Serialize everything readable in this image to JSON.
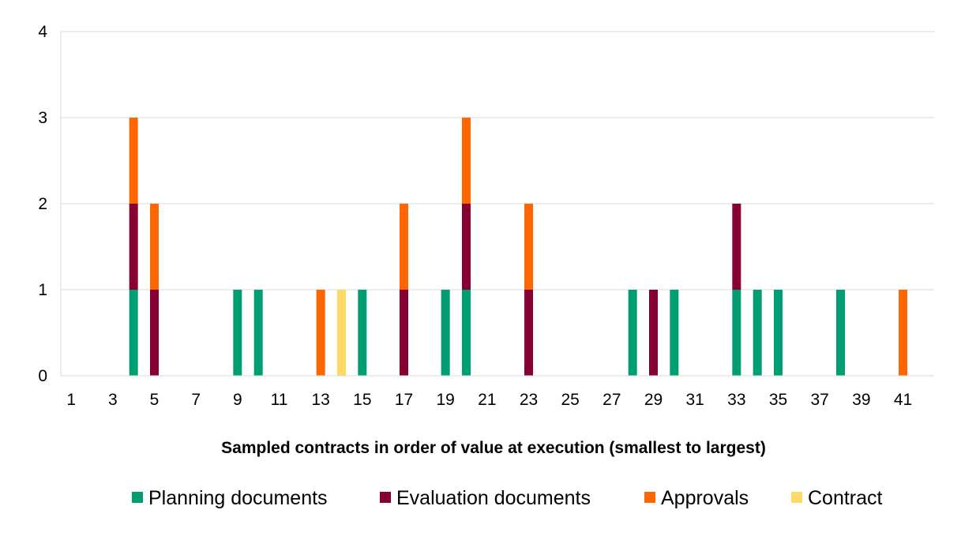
{
  "chart_data": {
    "type": "bar",
    "stacked": true,
    "title": "",
    "xlabel": "Sampled contracts in order of value at execution (smallest to largest)",
    "ylabel": "",
    "ylim": [
      0,
      4
    ],
    "yticks": [
      0,
      1,
      2,
      3,
      4
    ],
    "grid": true,
    "legend_position": "bottom",
    "categories": [
      1,
      2,
      3,
      4,
      5,
      6,
      7,
      8,
      9,
      10,
      11,
      12,
      13,
      14,
      15,
      16,
      17,
      18,
      19,
      20,
      21,
      22,
      23,
      24,
      25,
      26,
      27,
      28,
      29,
      30,
      31,
      32,
      33,
      34,
      35,
      36,
      37,
      38,
      39,
      40,
      41,
      42
    ],
    "x_tick_labels": [
      "1",
      "3",
      "5",
      "7",
      "9",
      "11",
      "13",
      "15",
      "17",
      "19",
      "21",
      "23",
      "25",
      "27",
      "29",
      "31",
      "33",
      "35",
      "37",
      "39",
      "41"
    ],
    "series": [
      {
        "name": "Planning documents",
        "color": "#009E73",
        "values": [
          0,
          0,
          0,
          1,
          0,
          0,
          0,
          0,
          1,
          1,
          0,
          0,
          0,
          0,
          1,
          0,
          0,
          0,
          1,
          1,
          0,
          0,
          0,
          0,
          0,
          0,
          0,
          1,
          0,
          1,
          0,
          0,
          1,
          1,
          1,
          0,
          0,
          1,
          0,
          0,
          0,
          0
        ]
      },
      {
        "name": "Evaluation documents",
        "color": "#870033",
        "values": [
          0,
          0,
          0,
          1,
          1,
          0,
          0,
          0,
          0,
          0,
          0,
          0,
          0,
          0,
          0,
          0,
          1,
          0,
          0,
          1,
          0,
          0,
          1,
          0,
          0,
          0,
          0,
          0,
          1,
          0,
          0,
          0,
          1,
          0,
          0,
          0,
          0,
          0,
          0,
          0,
          0,
          0
        ]
      },
      {
        "name": "Approvals",
        "color": "#FF6600",
        "values": [
          0,
          0,
          0,
          1,
          1,
          0,
          0,
          0,
          0,
          0,
          0,
          0,
          1,
          0,
          0,
          0,
          1,
          0,
          0,
          1,
          0,
          0,
          1,
          0,
          0,
          0,
          0,
          0,
          0,
          0,
          0,
          0,
          0,
          0,
          0,
          0,
          0,
          0,
          0,
          0,
          1,
          0
        ]
      },
      {
        "name": "Contract",
        "color": "#FFD966",
        "values": [
          0,
          0,
          0,
          0,
          0,
          0,
          0,
          0,
          0,
          0,
          0,
          0,
          0,
          1,
          0,
          0,
          0,
          0,
          0,
          0,
          0,
          0,
          0,
          0,
          0,
          0,
          0,
          0,
          0,
          0,
          0,
          0,
          0,
          0,
          0,
          0,
          0,
          0,
          0,
          0,
          0,
          0
        ]
      }
    ]
  }
}
